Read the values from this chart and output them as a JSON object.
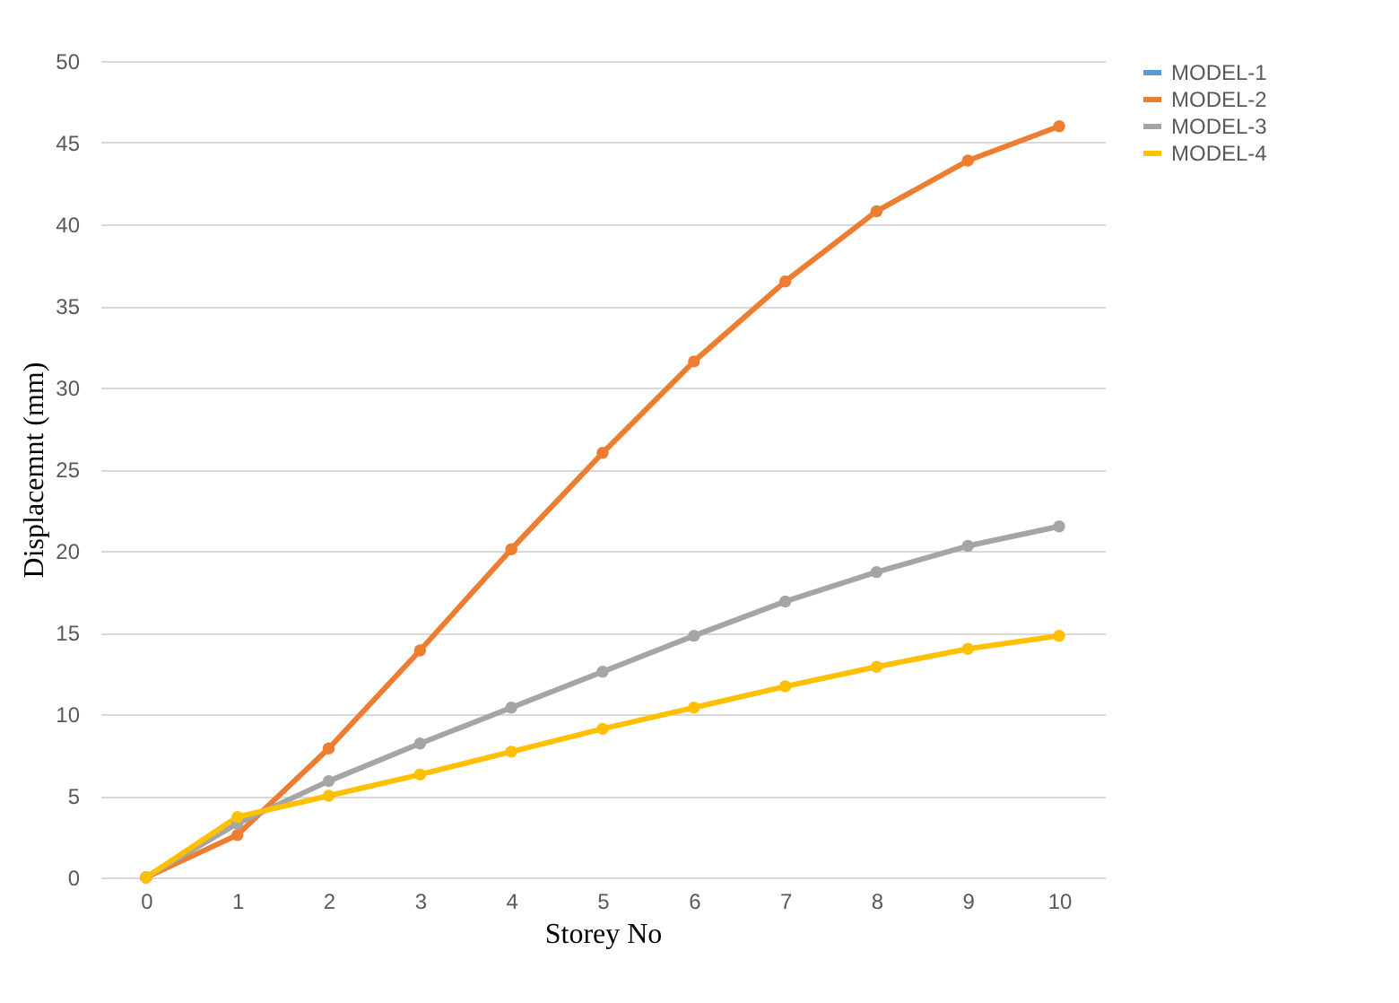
{
  "chart_data": {
    "type": "line",
    "xlabel": "Storey No",
    "ylabel": "Displacemnt (mm)",
    "categories": [
      "0",
      "1",
      "2",
      "3",
      "4",
      "5",
      "6",
      "7",
      "8",
      "9",
      "10"
    ],
    "series": [
      {
        "name": "MODEL-1",
        "color": "#5b9bd5",
        "values": [
          null,
          null,
          null,
          null,
          null,
          null,
          null,
          null,
          null,
          null,
          null
        ]
      },
      {
        "name": "MODEL-2",
        "color": "#ed7d31",
        "values": [
          0,
          2.6,
          7.9,
          13.9,
          20.1,
          26.0,
          31.6,
          36.5,
          40.8,
          43.9,
          46.0
        ]
      },
      {
        "name": "MODEL-3",
        "color": "#a5a5a5",
        "values": [
          0,
          3.3,
          5.9,
          8.2,
          10.4,
          12.6,
          14.8,
          16.9,
          18.7,
          20.3,
          21.5
        ]
      },
      {
        "name": "MODEL-4",
        "color": "#ffc000",
        "values": [
          0,
          3.7,
          5.0,
          6.3,
          7.7,
          9.1,
          10.4,
          11.7,
          12.9,
          14.0,
          14.8
        ]
      }
    ],
    "ylim": [
      0,
      50
    ],
    "yticks": [
      0,
      5,
      10,
      15,
      20,
      25,
      30,
      35,
      40,
      45,
      50
    ],
    "grid": "y",
    "legend": "right",
    "marker": "circle",
    "line_style": "solid"
  }
}
